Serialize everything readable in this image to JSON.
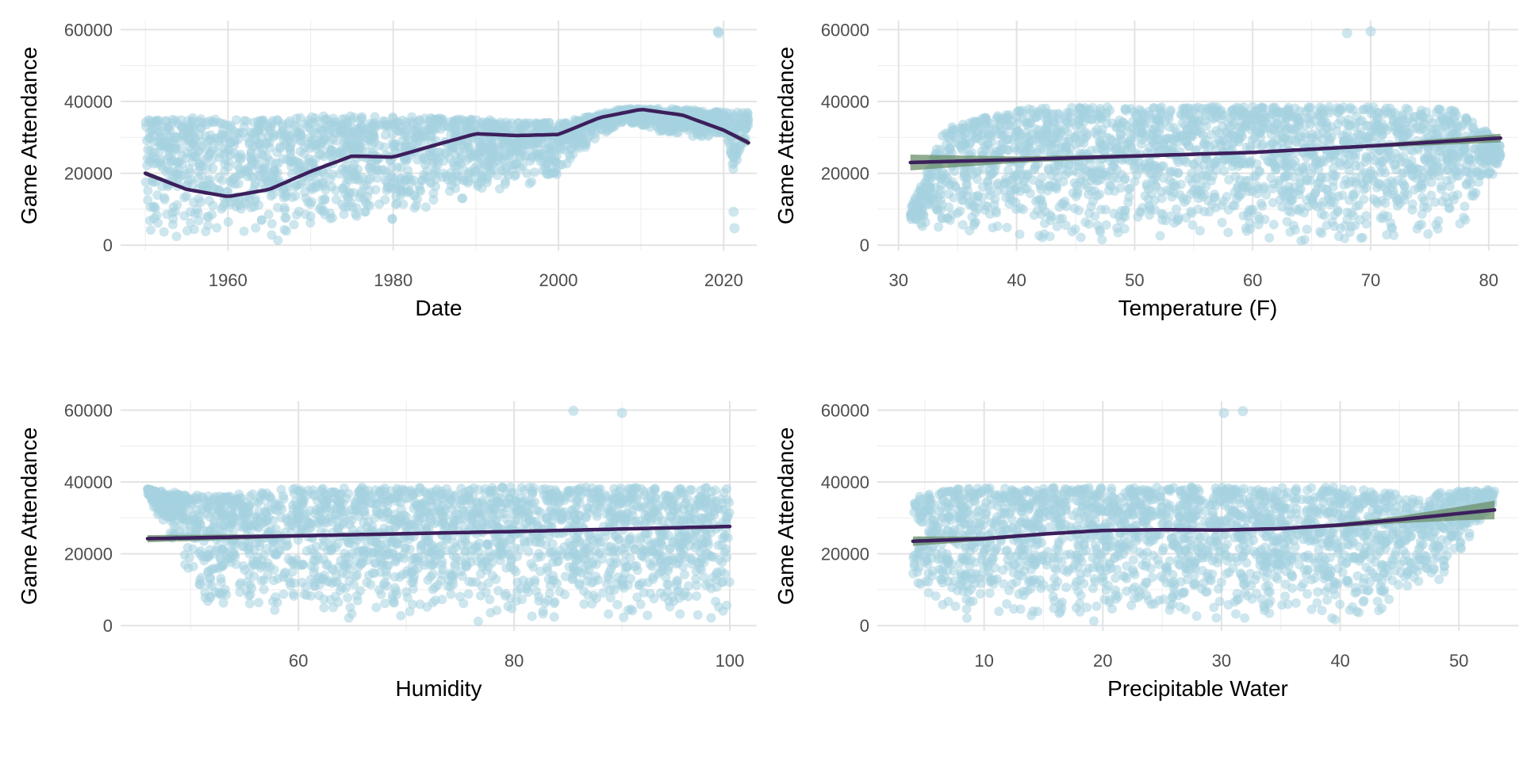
{
  "colors": {
    "points": "#a6d1e0",
    "smooth_line": "#3c1f5c",
    "ribbon": "#6b8f6b",
    "grid_major": "#e3e3e3",
    "grid_minor": "#f0f0f0",
    "tick_text": "#4d4d4d",
    "title_text": "#000000"
  },
  "chart_data": [
    {
      "type": "scatter",
      "id": "date",
      "xlabel": "Date",
      "ylabel": "Game Attendance",
      "xlim": [
        1947,
        2024
      ],
      "ylim": [
        -1500,
        62500
      ],
      "x_ticks": [
        1960,
        1980,
        2000,
        2020
      ],
      "x_tick_labels": [
        "1960",
        "1980",
        "2000",
        "2020"
      ],
      "y_ticks": [
        0,
        20000,
        40000,
        60000
      ],
      "y_tick_labels": [
        "0",
        "20000",
        "40000",
        "60000"
      ],
      "grid": true,
      "points": {
        "x_range": [
          1950,
          2023
        ],
        "y_band_by_x": [
          [
            1950,
            1000,
            36000
          ],
          [
            1960,
            1000,
            35000
          ],
          [
            1967,
            500,
            35000
          ],
          [
            1968,
            3000,
            36000
          ],
          [
            1980,
            6000,
            36000
          ],
          [
            1990,
            13000,
            35000
          ],
          [
            2000,
            18000,
            34000
          ],
          [
            2004,
            28000,
            36000
          ],
          [
            2008,
            34000,
            38000
          ],
          [
            2014,
            30000,
            38000
          ],
          [
            2020,
            30000,
            37000
          ],
          [
            2021,
            20000,
            37000
          ],
          [
            2023,
            25000,
            37000
          ]
        ],
        "outliers": [
          [
            2019.3,
            59500
          ],
          [
            2019.4,
            59000
          ],
          [
            2021.2,
            9300
          ],
          [
            2021.3,
            4700
          ]
        ]
      },
      "smooth": {
        "x": [
          1950,
          1955,
          1960,
          1965,
          1970,
          1975,
          1980,
          1985,
          1990,
          1995,
          2000,
          2005,
          2010,
          2015,
          2020,
          2023
        ],
        "y": [
          20000,
          15500,
          13500,
          15500,
          20500,
          24800,
          24500,
          27800,
          31000,
          30500,
          30800,
          35500,
          37800,
          36200,
          32000,
          28500
        ],
        "ribbon_halfwidth": [
          700,
          400,
          350,
          400,
          400,
          400,
          400,
          400,
          400,
          400,
          400,
          400,
          350,
          400,
          550,
          800
        ]
      }
    },
    {
      "type": "scatter",
      "id": "temperature",
      "xlabel": "Temperature (F)",
      "ylabel": "Game Attendance",
      "xlim": [
        28.2,
        82.5
      ],
      "ylim": [
        -1500,
        62500
      ],
      "x_ticks": [
        30,
        40,
        50,
        60,
        70,
        80
      ],
      "x_tick_labels": [
        "30",
        "40",
        "50",
        "60",
        "70",
        "80"
      ],
      "y_ticks": [
        0,
        20000,
        40000,
        60000
      ],
      "y_tick_labels": [
        "0",
        "20000",
        "40000",
        "60000"
      ],
      "grid": true,
      "points": {
        "x_range": [
          31,
          81
        ],
        "y_band_by_x": [
          [
            31,
            6000,
            10000
          ],
          [
            34,
            3000,
            33000
          ],
          [
            38,
            2000,
            36000
          ],
          [
            41,
            1000,
            38000
          ],
          [
            45,
            500,
            38500
          ],
          [
            70,
            500,
            38500
          ],
          [
            76,
            2000,
            38000
          ],
          [
            78,
            4000,
            37000
          ],
          [
            81,
            23000,
            28000
          ]
        ],
        "outliers": [
          [
            68,
            59000
          ],
          [
            70,
            59500
          ]
        ]
      },
      "smooth": {
        "x": [
          31,
          40,
          50,
          60,
          70,
          81
        ],
        "y": [
          23000,
          23800,
          24800,
          25800,
          27600,
          29800
        ],
        "ribbon_halfwidth": [
          2200,
          900,
          500,
          450,
          500,
          1200
        ]
      }
    },
    {
      "type": "scatter",
      "id": "humidity",
      "xlabel": "Humidity",
      "ylabel": "Game Attendance",
      "xlim": [
        43.5,
        102.5
      ],
      "ylim": [
        -1500,
        62500
      ],
      "x_ticks": [
        60,
        80,
        100
      ],
      "x_tick_labels": [
        "60",
        "80",
        "100"
      ],
      "y_ticks": [
        0,
        20000,
        40000,
        60000
      ],
      "y_tick_labels": [
        "0",
        "20000",
        "40000",
        "60000"
      ],
      "grid": true,
      "points": {
        "x_range": [
          46,
          100
        ],
        "y_band_by_x": [
          [
            46,
            36000,
            38000
          ],
          [
            52,
            3000,
            36000
          ],
          [
            56,
            2000,
            37000
          ],
          [
            60,
            1000,
            38500
          ],
          [
            65,
            500,
            38500
          ],
          [
            100,
            500,
            38500
          ]
        ],
        "outliers": [
          [
            85.5,
            59800
          ],
          [
            90,
            59200
          ]
        ]
      },
      "smooth": {
        "x": [
          46,
          60,
          70,
          80,
          90,
          100
        ],
        "y": [
          24200,
          25000,
          25600,
          26200,
          26900,
          27600
        ],
        "ribbon_halfwidth": [
          1000,
          500,
          350,
          300,
          350,
          500
        ]
      }
    },
    {
      "type": "scatter",
      "id": "precipitable_water",
      "xlabel": "Precipitable Water",
      "ylabel": "Game Attendance",
      "xlim": [
        1.0,
        55.0
      ],
      "ylim": [
        -1500,
        62500
      ],
      "x_ticks": [
        10,
        20,
        30,
        40,
        50
      ],
      "x_tick_labels": [
        "10",
        "20",
        "30",
        "40",
        "50"
      ],
      "y_ticks": [
        0,
        20000,
        40000,
        60000
      ],
      "y_tick_labels": [
        "0",
        "20000",
        "40000",
        "60000"
      ],
      "grid": true,
      "points": {
        "x_range": [
          4,
          53
        ],
        "y_band_by_x": [
          [
            4,
            4000,
            36000
          ],
          [
            7,
            2000,
            38000
          ],
          [
            10,
            500,
            38500
          ],
          [
            40,
            500,
            38500
          ],
          [
            44,
            3000,
            37000
          ],
          [
            46,
            10000,
            36000
          ],
          [
            48,
            8000,
            37000
          ],
          [
            53,
            34000,
            38000
          ]
        ],
        "outliers": [
          [
            30.2,
            59200
          ],
          [
            31.8,
            59700
          ]
        ]
      },
      "smooth": {
        "x": [
          4,
          10,
          15,
          20,
          25,
          30,
          35,
          40,
          45,
          50,
          53
        ],
        "y": [
          23500,
          24200,
          25500,
          26500,
          26700,
          26600,
          27000,
          28000,
          29500,
          31200,
          32200
        ],
        "ribbon_halfwidth": [
          1300,
          600,
          450,
          400,
          400,
          400,
          450,
          600,
          1000,
          1900,
          2600
        ]
      }
    }
  ]
}
